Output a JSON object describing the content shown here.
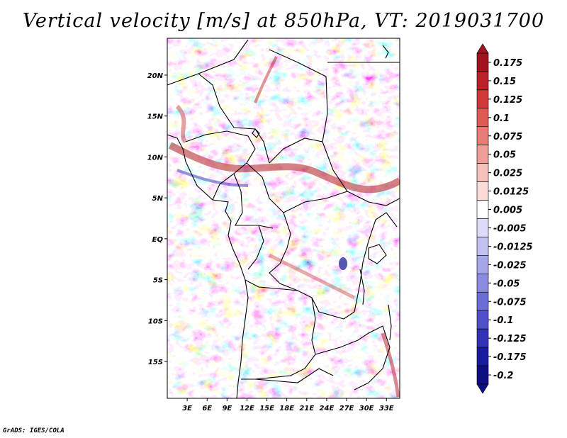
{
  "title": "Vertical velocity [m/s] at 850hPa, VT: 2019031700",
  "credit": "GrADS: IGES/COLA",
  "map": {
    "lon_range": [
      0,
      35
    ],
    "lat_range": [
      -19.5,
      24.5
    ],
    "x_ticks": [
      "3E",
      "6E",
      "9E",
      "12E",
      "15E",
      "18E",
      "21E",
      "24E",
      "27E",
      "30E",
      "33E"
    ],
    "x_tick_lons": [
      3,
      6,
      9,
      12,
      15,
      18,
      21,
      24,
      27,
      30,
      33
    ],
    "y_ticks": [
      "20N",
      "15N",
      "10N",
      "5N",
      "EQ",
      "5S",
      "10S",
      "15S"
    ],
    "y_tick_lats": [
      20,
      15,
      10,
      5,
      0,
      -5,
      -10,
      -15
    ],
    "field": "Vertical velocity",
    "level": "850hPa",
    "valid_time": "2019031700"
  },
  "colorbar": {
    "labels": [
      "0.175",
      "0.15",
      "0.125",
      "0.1",
      "0.075",
      "0.05",
      "0.025",
      "0.0125",
      "0.005",
      "-0.005",
      "-0.0125",
      "-0.025",
      "-0.05",
      "-0.075",
      "-0.1",
      "-0.125",
      "-0.175",
      "-0.2"
    ],
    "colors": [
      "#a0141e",
      "#b92328",
      "#d03a3a",
      "#de5a55",
      "#e87c76",
      "#f09e98",
      "#f7c0bb",
      "#fbdcd8",
      "#ffffff",
      "#dcdcfa",
      "#c1c1f2",
      "#a6a6ea",
      "#8a8ae0",
      "#6d6dd6",
      "#5050c8",
      "#3232b4",
      "#1b1ba0",
      "#0f0f82"
    ]
  },
  "colors": {
    "up_strong": "#b01c22",
    "down_strong": "#2a2ab0",
    "land_boundary": "#000000"
  }
}
